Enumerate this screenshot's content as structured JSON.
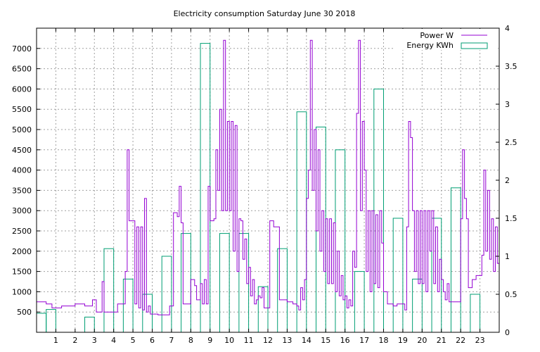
{
  "chart_data": {
    "type": "line",
    "title": "Electricity consumption Saturday June 30 2018",
    "xlabel": "",
    "ylabel": "",
    "y2label": "",
    "x_ticks": [
      "1",
      "2",
      "3",
      "4",
      "5",
      "6",
      "7",
      "8",
      "9",
      "10",
      "11",
      "12",
      "13",
      "14",
      "15",
      "16",
      "17",
      "18",
      "19",
      "20",
      "21",
      "22",
      "23"
    ],
    "xlim": [
      0,
      24
    ],
    "ylim": [
      0,
      7500
    ],
    "y_ticks": [
      "500",
      "1000",
      "1500",
      "2000",
      "2500",
      "3000",
      "3500",
      "4000",
      "4500",
      "5000",
      "5500",
      "6000",
      "6500",
      "7000"
    ],
    "y2lim": [
      0,
      4
    ],
    "y2_ticks": [
      "0",
      "0.5",
      "1",
      "1.5",
      "2",
      "2.5",
      "3",
      "3.5",
      "4"
    ],
    "grid": true,
    "legend_position": "top-right",
    "colors": {
      "power": "#9400d3",
      "energy": "#009e73"
    },
    "series": [
      {
        "name": "Power W",
        "axis": "left",
        "style": "steps",
        "points": [
          [
            0,
            750
          ],
          [
            0.3,
            750
          ],
          [
            0.5,
            700
          ],
          [
            0.8,
            700
          ],
          [
            0.8,
            600
          ],
          [
            1.3,
            600
          ],
          [
            1.3,
            650
          ],
          [
            2.0,
            650
          ],
          [
            2.0,
            700
          ],
          [
            2.5,
            700
          ],
          [
            2.5,
            650
          ],
          [
            2.9,
            650
          ],
          [
            2.9,
            800
          ],
          [
            3.1,
            800
          ],
          [
            3.1,
            500
          ],
          [
            3.4,
            500
          ],
          [
            3.4,
            1250
          ],
          [
            3.5,
            1250
          ],
          [
            3.5,
            500
          ],
          [
            4.2,
            500
          ],
          [
            4.2,
            700
          ],
          [
            4.5,
            700
          ],
          [
            4.6,
            1500
          ],
          [
            4.7,
            4500
          ],
          [
            4.8,
            2750
          ],
          [
            5.0,
            2750
          ],
          [
            5.1,
            700
          ],
          [
            5.2,
            2600
          ],
          [
            5.3,
            600
          ],
          [
            5.4,
            2600
          ],
          [
            5.5,
            550
          ],
          [
            5.6,
            3300
          ],
          [
            5.7,
            500
          ],
          [
            5.8,
            650
          ],
          [
            5.9,
            450
          ],
          [
            6.3,
            450
          ],
          [
            6.3,
            430
          ],
          [
            6.9,
            430
          ],
          [
            6.9,
            650
          ],
          [
            7.0,
            650
          ],
          [
            7.1,
            2950
          ],
          [
            7.3,
            2850
          ],
          [
            7.4,
            3600
          ],
          [
            7.5,
            2700
          ],
          [
            7.6,
            2500
          ],
          [
            7.6,
            700
          ],
          [
            8.0,
            700
          ],
          [
            8.0,
            1300
          ],
          [
            8.2,
            1150
          ],
          [
            8.3,
            800
          ],
          [
            8.5,
            1200
          ],
          [
            8.6,
            700
          ],
          [
            8.7,
            1300
          ],
          [
            8.8,
            700
          ],
          [
            8.9,
            3600
          ],
          [
            9.0,
            2750
          ],
          [
            9.2,
            2800
          ],
          [
            9.3,
            4500
          ],
          [
            9.4,
            3500
          ],
          [
            9.5,
            5500
          ],
          [
            9.6,
            3000
          ],
          [
            9.7,
            7200
          ],
          [
            9.8,
            3000
          ],
          [
            9.9,
            5200
          ],
          [
            10.0,
            3000
          ],
          [
            10.1,
            5200
          ],
          [
            10.2,
            2000
          ],
          [
            10.3,
            5100
          ],
          [
            10.4,
            1500
          ],
          [
            10.5,
            2800
          ],
          [
            10.6,
            2750
          ],
          [
            10.7,
            1800
          ],
          [
            10.8,
            2300
          ],
          [
            10.9,
            1200
          ],
          [
            11.0,
            1600
          ],
          [
            11.1,
            900
          ],
          [
            11.2,
            1300
          ],
          [
            11.3,
            700
          ],
          [
            11.4,
            800
          ],
          [
            11.5,
            900
          ],
          [
            11.6,
            850
          ],
          [
            11.7,
            1100
          ],
          [
            11.8,
            600
          ],
          [
            12.0,
            600
          ],
          [
            12.1,
            2750
          ],
          [
            12.3,
            2600
          ],
          [
            12.5,
            2600
          ],
          [
            12.6,
            800
          ],
          [
            13.0,
            750
          ],
          [
            13.3,
            700
          ],
          [
            13.5,
            650
          ],
          [
            13.6,
            550
          ],
          [
            13.7,
            1100
          ],
          [
            13.8,
            800
          ],
          [
            13.9,
            1300
          ],
          [
            14.0,
            3300
          ],
          [
            14.1,
            4000
          ],
          [
            14.2,
            7200
          ],
          [
            14.3,
            3500
          ],
          [
            14.4,
            5000
          ],
          [
            14.5,
            2500
          ],
          [
            14.6,
            4500
          ],
          [
            14.7,
            2000
          ],
          [
            14.8,
            3000
          ],
          [
            14.9,
            1500
          ],
          [
            15.0,
            2800
          ],
          [
            15.1,
            1200
          ],
          [
            15.2,
            2800
          ],
          [
            15.3,
            1200
          ],
          [
            15.4,
            2700
          ],
          [
            15.5,
            1000
          ],
          [
            15.6,
            2000
          ],
          [
            15.7,
            900
          ],
          [
            15.8,
            1400
          ],
          [
            15.9,
            800
          ],
          [
            16.0,
            900
          ],
          [
            16.1,
            600
          ],
          [
            16.2,
            800
          ],
          [
            16.3,
            650
          ],
          [
            16.4,
            2000
          ],
          [
            16.5,
            1600
          ],
          [
            16.6,
            5400
          ],
          [
            16.7,
            7200
          ],
          [
            16.8,
            3000
          ],
          [
            16.9,
            5200
          ],
          [
            17.0,
            4000
          ],
          [
            17.1,
            1500
          ],
          [
            17.2,
            3000
          ],
          [
            17.3,
            1000
          ],
          [
            17.4,
            3000
          ],
          [
            17.5,
            1200
          ],
          [
            17.6,
            2900
          ],
          [
            17.7,
            1100
          ],
          [
            17.8,
            3000
          ],
          [
            17.9,
            2200
          ],
          [
            18.0,
            1000
          ],
          [
            18.2,
            700
          ],
          [
            18.5,
            650
          ],
          [
            18.7,
            700
          ],
          [
            19.1,
            550
          ],
          [
            19.2,
            2600
          ],
          [
            19.3,
            5200
          ],
          [
            19.4,
            4800
          ],
          [
            19.5,
            3000
          ],
          [
            19.6,
            1500
          ],
          [
            19.7,
            3000
          ],
          [
            19.8,
            1200
          ],
          [
            19.9,
            3000
          ],
          [
            20.0,
            1200
          ],
          [
            20.1,
            3000
          ],
          [
            20.2,
            1000
          ],
          [
            20.3,
            3000
          ],
          [
            20.4,
            2000
          ],
          [
            20.5,
            3000
          ],
          [
            20.6,
            1200
          ],
          [
            20.7,
            2600
          ],
          [
            20.8,
            1000
          ],
          [
            20.9,
            1800
          ],
          [
            21.0,
            1300
          ],
          [
            21.1,
            1000
          ],
          [
            21.2,
            800
          ],
          [
            21.3,
            1200
          ],
          [
            21.4,
            750
          ],
          [
            21.9,
            750
          ],
          [
            22.0,
            2800
          ],
          [
            22.1,
            4500
          ],
          [
            22.2,
            3300
          ],
          [
            22.3,
            2800
          ],
          [
            22.4,
            1100
          ],
          [
            22.6,
            1300
          ],
          [
            22.8,
            1400
          ],
          [
            23.0,
            1400
          ],
          [
            23.1,
            1900
          ],
          [
            23.2,
            4000
          ],
          [
            23.3,
            2000
          ],
          [
            23.4,
            3500
          ],
          [
            23.5,
            1800
          ],
          [
            23.6,
            2800
          ],
          [
            23.7,
            1500
          ],
          [
            23.8,
            2600
          ],
          [
            23.9,
            1700
          ],
          [
            24.0,
            1500
          ]
        ]
      },
      {
        "name": "Energy KWh",
        "axis": "right",
        "style": "hist",
        "bins": [
          [
            0.0,
            0.5,
            0.25
          ],
          [
            0.5,
            1.0,
            0.3
          ],
          [
            1.0,
            2.5,
            0.0
          ],
          [
            2.5,
            3.0,
            0.2
          ],
          [
            3.0,
            3.5,
            0.0
          ],
          [
            3.5,
            4.0,
            1.1
          ],
          [
            4.0,
            4.5,
            0.0
          ],
          [
            4.5,
            5.0,
            0.7
          ],
          [
            5.0,
            5.5,
            0.0
          ],
          [
            5.5,
            6.0,
            0.5
          ],
          [
            6.0,
            6.5,
            0.0
          ],
          [
            6.5,
            7.0,
            1.0
          ],
          [
            7.0,
            7.5,
            0.0
          ],
          [
            7.5,
            8.0,
            1.3
          ],
          [
            8.0,
            8.5,
            0.0
          ],
          [
            8.5,
            9.0,
            3.8
          ],
          [
            9.0,
            9.5,
            0.0
          ],
          [
            9.5,
            10.0,
            1.3
          ],
          [
            10.0,
            10.5,
            0.0
          ],
          [
            10.5,
            11.0,
            1.3
          ],
          [
            11.0,
            11.5,
            0.0
          ],
          [
            11.5,
            12.0,
            0.6
          ],
          [
            12.0,
            12.5,
            0.0
          ],
          [
            12.5,
            13.0,
            1.1
          ],
          [
            13.0,
            13.5,
            0.0
          ],
          [
            13.5,
            14.0,
            2.9
          ],
          [
            14.0,
            14.5,
            0.0
          ],
          [
            14.5,
            15.0,
            2.7
          ],
          [
            15.0,
            15.5,
            0.0
          ],
          [
            15.5,
            16.0,
            2.4
          ],
          [
            16.0,
            16.5,
            0.0
          ],
          [
            16.5,
            17.0,
            0.8
          ],
          [
            17.0,
            17.5,
            0.0
          ],
          [
            17.5,
            18.0,
            3.2
          ],
          [
            18.0,
            18.5,
            0.0
          ],
          [
            18.5,
            19.0,
            1.5
          ],
          [
            19.0,
            19.5,
            0.0
          ],
          [
            19.5,
            20.0,
            0.7
          ],
          [
            20.0,
            20.5,
            0.0
          ],
          [
            20.5,
            21.0,
            1.5
          ],
          [
            21.0,
            21.5,
            0.0
          ],
          [
            21.5,
            22.0,
            1.9
          ],
          [
            22.0,
            22.5,
            0.0
          ],
          [
            22.5,
            23.0,
            0.5
          ]
        ]
      }
    ]
  }
}
